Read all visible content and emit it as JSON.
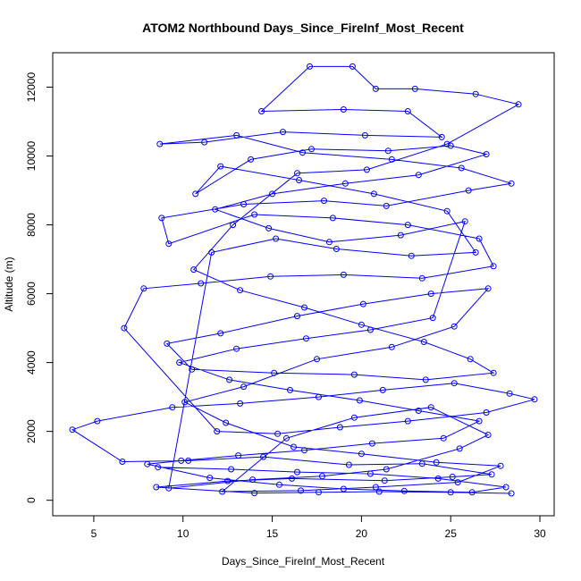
{
  "chart_data": {
    "type": "scatter",
    "title": "ATOM2 Northbound Days_Since_FireInf_Most_Recent",
    "xlabel": "Days_Since_FireInf_Most_Recent",
    "ylabel": "Altitude (m)",
    "xlim": [
      2.7,
      30.8
    ],
    "ylim": [
      -450,
      13000
    ],
    "xticks": [
      5,
      10,
      15,
      20,
      25,
      30
    ],
    "xtick_labels": [
      "5",
      "10",
      "15",
      "20",
      "25",
      "30"
    ],
    "yticks": [
      0,
      2000,
      4000,
      6000,
      8000,
      10000,
      12000
    ],
    "ytick_labels": [
      "0",
      "2000",
      "4000",
      "6000",
      "8000",
      "10000",
      "12000"
    ],
    "grid": false,
    "legend": "none",
    "color": "#0000ff",
    "series": [
      {
        "mode": "lines+markers",
        "points": [
          [
            28.4,
            200
          ],
          [
            25.0,
            230
          ],
          [
            21.0,
            250
          ],
          [
            17.6,
            230
          ],
          [
            14.0,
            210
          ],
          [
            8.5,
            380
          ],
          [
            12.5,
            560
          ],
          [
            16.1,
            630
          ],
          [
            21.3,
            570
          ],
          [
            25.1,
            680
          ],
          [
            27.3,
            750
          ],
          [
            23.4,
            1060
          ],
          [
            19.3,
            1030
          ],
          [
            14.5,
            1260
          ],
          [
            10.3,
            1150
          ],
          [
            6.6,
            1120
          ],
          [
            3.8,
            2050
          ],
          [
            5.2,
            2300
          ],
          [
            9.4,
            2700
          ],
          [
            13.2,
            2810
          ],
          [
            17.6,
            3000
          ],
          [
            21.2,
            3200
          ],
          [
            25.2,
            3400
          ],
          [
            28.3,
            3100
          ],
          [
            29.7,
            2930
          ],
          [
            27.0,
            2550
          ],
          [
            22.6,
            2300
          ],
          [
            18.8,
            2120
          ],
          [
            15.3,
            1930
          ],
          [
            11.9,
            2000
          ],
          [
            6.7,
            5000
          ],
          [
            7.8,
            6150
          ],
          [
            11.0,
            6300
          ],
          [
            14.9,
            6500
          ],
          [
            19.0,
            6550
          ],
          [
            23.4,
            6450
          ],
          [
            27.4,
            6800
          ],
          [
            26.6,
            7600
          ],
          [
            22.6,
            8000
          ],
          [
            18.4,
            8200
          ],
          [
            14.0,
            8300
          ],
          [
            9.2,
            7450
          ],
          [
            8.8,
            8200
          ],
          [
            13.4,
            8600
          ],
          [
            17.9,
            8700
          ],
          [
            21.4,
            8550
          ],
          [
            26.0,
            9000
          ],
          [
            28.4,
            9200
          ],
          [
            25.6,
            9650
          ],
          [
            21.7,
            9900
          ],
          [
            16.7,
            10100
          ],
          [
            13.0,
            10600
          ],
          [
            8.7,
            10350
          ],
          [
            11.2,
            10400
          ],
          [
            15.6,
            10700
          ],
          [
            20.2,
            10600
          ],
          [
            24.5,
            10550
          ],
          [
            22.6,
            11300
          ],
          [
            19.0,
            11350
          ],
          [
            14.4,
            11300
          ],
          [
            17.1,
            12600
          ],
          [
            19.5,
            12600
          ],
          [
            20.8,
            11950
          ],
          [
            23.0,
            11950
          ],
          [
            26.4,
            11800
          ],
          [
            28.8,
            11500
          ],
          [
            24.8,
            10350
          ],
          [
            20.3,
            9600
          ],
          [
            16.4,
            9500
          ],
          [
            12.8,
            8000
          ],
          [
            10.6,
            6700
          ],
          [
            13.2,
            6100
          ],
          [
            16.8,
            5600
          ],
          [
            20.0,
            5100
          ],
          [
            23.5,
            4600
          ],
          [
            26.1,
            4100
          ],
          [
            27.4,
            3700
          ],
          [
            23.6,
            3500
          ],
          [
            19.6,
            3650
          ],
          [
            15.1,
            3700
          ],
          [
            10.5,
            3800
          ],
          [
            9.1,
            4550
          ],
          [
            12.1,
            4850
          ],
          [
            16.4,
            5350
          ],
          [
            20.1,
            5700
          ],
          [
            23.9,
            6000
          ],
          [
            27.1,
            6150
          ],
          [
            25.2,
            5050
          ],
          [
            21.7,
            4450
          ],
          [
            17.5,
            4100
          ],
          [
            13.4,
            3300
          ],
          [
            10.1,
            2850
          ],
          [
            12.4,
            2250
          ],
          [
            16.2,
            1550
          ],
          [
            20.0,
            1350
          ],
          [
            24.2,
            1100
          ],
          [
            27.8,
            1000
          ],
          [
            25.4,
            520
          ],
          [
            20.8,
            380
          ],
          [
            16.6,
            280
          ],
          [
            12.2,
            250
          ],
          [
            15.8,
            1800
          ],
          [
            19.6,
            2400
          ],
          [
            23.9,
            2700
          ],
          [
            27.1,
            1900
          ],
          [
            25.5,
            1500
          ],
          [
            21.4,
            900
          ],
          [
            17.8,
            700
          ],
          [
            13.9,
            600
          ],
          [
            9.2,
            350
          ],
          [
            11.6,
            7200
          ],
          [
            15.2,
            7600
          ],
          [
            18.6,
            7300
          ],
          [
            22.8,
            7100
          ],
          [
            26.4,
            7200
          ],
          [
            24.8,
            8400
          ],
          [
            20.7,
            8900
          ],
          [
            16.5,
            9300
          ],
          [
            12.1,
            9700
          ],
          [
            10.7,
            8900
          ],
          [
            13.8,
            9900
          ],
          [
            17.2,
            10200
          ],
          [
            21.5,
            10150
          ],
          [
            25.0,
            10300
          ],
          [
            27.0,
            10050
          ],
          [
            23.2,
            9450
          ],
          [
            19.1,
            9200
          ],
          [
            15.0,
            8900
          ],
          [
            11.8,
            8450
          ],
          [
            14.8,
            7900
          ],
          [
            18.2,
            7500
          ],
          [
            22.2,
            7700
          ],
          [
            25.8,
            8100
          ],
          [
            24.0,
            5300
          ],
          [
            20.5,
            4950
          ],
          [
            16.9,
            4700
          ],
          [
            13.0,
            4400
          ],
          [
            9.8,
            4000
          ],
          [
            12.6,
            3500
          ],
          [
            16.0,
            3200
          ],
          [
            19.9,
            2900
          ],
          [
            23.2,
            2600
          ],
          [
            26.6,
            2300
          ],
          [
            24.6,
            1800
          ],
          [
            20.6,
            1650
          ],
          [
            16.8,
            1450
          ],
          [
            13.1,
            1300
          ],
          [
            9.9,
            1150
          ],
          [
            8.0,
            1050
          ],
          [
            11.5,
            650
          ],
          [
            15.4,
            450
          ],
          [
            19.0,
            330
          ],
          [
            22.4,
            270
          ],
          [
            26.2,
            230
          ],
          [
            28.1,
            380
          ],
          [
            24.3,
            630
          ],
          [
            20.5,
            770
          ],
          [
            16.4,
            820
          ],
          [
            12.7,
            900
          ],
          [
            8.6,
            960
          ]
        ]
      }
    ]
  }
}
